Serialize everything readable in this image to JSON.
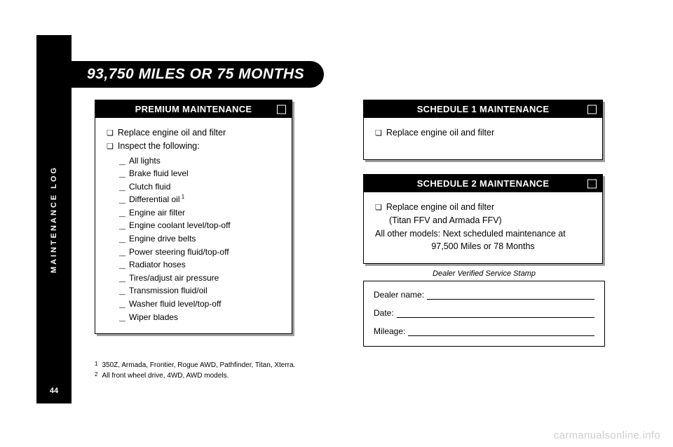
{
  "page": {
    "sidebar_label": "MAINTENANCE LOG",
    "page_number": "44",
    "title": "93,750 MILES OR 75 MONTHS",
    "watermark": "carmanualsonline.info"
  },
  "premium": {
    "header": "PREMIUM MAINTENANCE",
    "items": [
      "Replace engine oil and filter",
      "Inspect the following:"
    ],
    "sub_items": [
      "All lights",
      "Brake fluid level",
      "Clutch fluid",
      "Differential oil",
      "Engine air filter",
      "Engine coolant level/top-off",
      "Engine drive belts",
      "Power steering fluid/top-off",
      "Radiator hoses",
      "Tires/adjust air pressure",
      "Transmission fluid/oil",
      "Washer fluid level/top-off",
      "Wiper blades"
    ],
    "sub_item_sup": {
      "3": "1"
    }
  },
  "schedule1": {
    "header": "SCHEDULE 1 MAINTENANCE",
    "item": "Replace engine oil and filter"
  },
  "schedule2": {
    "header": "SCHEDULE 2 MAINTENANCE",
    "line1": "Replace engine oil and filter",
    "line2": "(Titan FFV and Armada FFV)",
    "line3": "All other models: Next scheduled maintenance at",
    "line4": "97,500 Miles or 78 Months"
  },
  "stamp": {
    "title": "Dealer Verified Service Stamp",
    "fields": [
      "Dealer name:",
      "Date:",
      "Mileage:"
    ]
  },
  "footnotes": [
    {
      "n": "1",
      "text": "350Z, Armada, Frontier, Rogue AWD, Pathfinder, Titan, Xterra."
    },
    {
      "n": "2",
      "text": "All front wheel drive, 4WD, AWD models."
    }
  ]
}
